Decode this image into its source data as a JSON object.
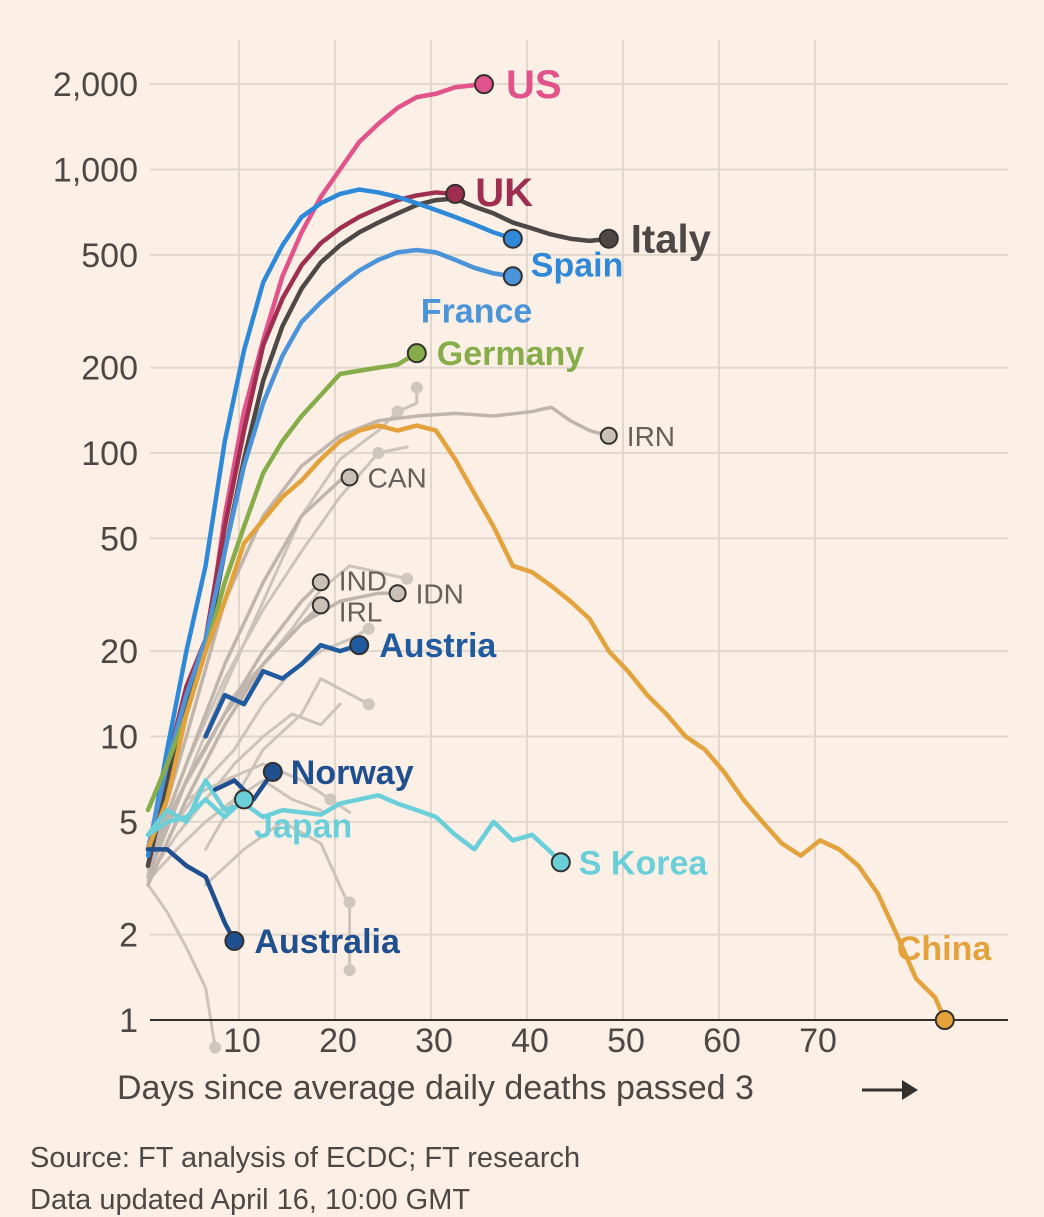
{
  "chart_data": {
    "type": "line",
    "yscale": "log",
    "ylim": [
      1,
      2500
    ],
    "xlim": [
      0,
      87
    ],
    "yticks": [
      1,
      2,
      5,
      10,
      20,
      50,
      100,
      200,
      500,
      1000,
      2000
    ],
    "ytick_labels": [
      "1",
      "2",
      "5",
      "10",
      "20",
      "50",
      "100",
      "200",
      "500",
      "1,000",
      "2,000"
    ],
    "xticks": [
      10,
      20,
      30,
      40,
      50,
      60,
      70
    ],
    "xtick_labels": [
      "10",
      "20",
      "30",
      "40",
      "50",
      "60",
      "70"
    ],
    "xlabel": "Days since average daily deaths passed 3",
    "grid": true,
    "series": [
      {
        "name": "US",
        "label": "US",
        "color": "#e1538a",
        "highlight": true,
        "x": [
          0,
          2,
          4,
          6,
          8,
          10,
          12,
          14,
          16,
          18,
          20,
          22,
          24,
          26,
          28,
          30,
          32,
          35
        ],
        "y": [
          3.5,
          7,
          14,
          20,
          60,
          140,
          250,
          420,
          600,
          800,
          1000,
          1250,
          1450,
          1650,
          1800,
          1850,
          1950,
          2000
        ]
      },
      {
        "name": "UK",
        "label": "UK",
        "color": "#9e2f50",
        "highlight": true,
        "x": [
          0,
          2,
          4,
          6,
          8,
          10,
          12,
          14,
          16,
          18,
          20,
          22,
          24,
          26,
          28,
          30,
          32
        ],
        "y": [
          4,
          8,
          15,
          22,
          55,
          120,
          240,
          350,
          460,
          550,
          620,
          680,
          730,
          780,
          810,
          830,
          820
        ]
      },
      {
        "name": "Italy",
        "label": "Italy",
        "color": "#4d4845",
        "highlight": true,
        "x": [
          0,
          2,
          4,
          6,
          8,
          10,
          12,
          14,
          16,
          18,
          20,
          22,
          24,
          26,
          28,
          30,
          32,
          34,
          36,
          38,
          40,
          42,
          44,
          46,
          48
        ],
        "y": [
          3.5,
          7,
          13,
          20,
          45,
          95,
          180,
          280,
          380,
          470,
          540,
          600,
          650,
          700,
          750,
          780,
          790,
          740,
          700,
          650,
          620,
          590,
          570,
          560,
          570
        ]
      },
      {
        "name": "Spain",
        "label": "Spain",
        "color": "#2e8ad9",
        "highlight": true,
        "x": [
          0,
          2,
          4,
          6,
          8,
          10,
          12,
          14,
          16,
          18,
          20,
          22,
          24,
          26,
          28,
          30,
          32,
          34,
          36,
          38
        ],
        "y": [
          3.8,
          9,
          20,
          40,
          110,
          230,
          400,
          540,
          680,
          760,
          820,
          850,
          830,
          800,
          760,
          720,
          680,
          640,
          600,
          570
        ]
      },
      {
        "name": "France",
        "label": "France",
        "color": "#4c94d9",
        "highlight": true,
        "x": [
          0,
          2,
          4,
          6,
          8,
          10,
          12,
          14,
          16,
          18,
          20,
          22,
          24,
          26,
          28,
          30,
          32,
          34,
          36,
          38
        ],
        "y": [
          4,
          8,
          14,
          22,
          45,
          90,
          150,
          220,
          290,
          340,
          390,
          440,
          480,
          510,
          520,
          510,
          480,
          450,
          430,
          420
        ]
      },
      {
        "name": "Germany",
        "label": "Germany",
        "color": "#87ad4a",
        "highlight": true,
        "x": [
          0,
          2,
          4,
          6,
          8,
          10,
          12,
          14,
          16,
          18,
          20,
          22,
          24,
          26,
          28
        ],
        "y": [
          5.5,
          8,
          12,
          20,
          35,
          55,
          85,
          110,
          135,
          160,
          190,
          195,
          200,
          205,
          225
        ]
      },
      {
        "name": "China",
        "label": "China",
        "color": "#e3a23b",
        "highlight": true,
        "x": [
          0,
          2,
          4,
          6,
          8,
          10,
          12,
          14,
          16,
          18,
          20,
          22,
          24,
          26,
          28,
          30,
          32,
          34,
          36,
          38,
          40,
          42,
          44,
          46,
          48,
          50,
          52,
          54,
          56,
          58,
          60,
          62,
          64,
          66,
          68,
          70,
          72,
          74,
          76,
          78,
          80,
          82,
          83
        ],
        "y": [
          4,
          6,
          12,
          20,
          30,
          48,
          58,
          70,
          80,
          95,
          110,
          120,
          125,
          120,
          125,
          120,
          95,
          72,
          55,
          40,
          38,
          34,
          30,
          26,
          20,
          17,
          14,
          12,
          10,
          9,
          7.5,
          6,
          5,
          4.2,
          3.8,
          4.3,
          4,
          3.5,
          2.8,
          2,
          1.4,
          1.2,
          1
        ]
      },
      {
        "name": "S Korea",
        "label": "S Korea",
        "color": "#6bcfd9",
        "highlight": true,
        "x": [
          0,
          2,
          4,
          6,
          8,
          10,
          12,
          14,
          16,
          18,
          20,
          22,
          24,
          26,
          28,
          30,
          32,
          34,
          36,
          38,
          40,
          42,
          43
        ],
        "y": [
          4.5,
          5.5,
          5,
          7,
          5.5,
          5.8,
          5.2,
          5.5,
          5.4,
          5.3,
          5.8,
          6,
          6.2,
          5.8,
          5.5,
          5.2,
          4.5,
          4,
          5,
          4.3,
          4.5,
          3.9,
          3.6
        ]
      },
      {
        "name": "Austria",
        "label": "Austria",
        "color": "#205a9f",
        "highlight": true,
        "x": [
          6,
          8,
          10,
          12,
          14,
          16,
          18,
          20,
          22
        ],
        "y": [
          10,
          14,
          13,
          17,
          16,
          18,
          21,
          20,
          21
        ]
      },
      {
        "name": "Norway",
        "label": "Norway",
        "color": "#1f4f8f",
        "highlight": true,
        "x": [
          7,
          9,
          11,
          13
        ],
        "y": [
          6.5,
          7,
          6,
          7.5
        ]
      },
      {
        "name": "Japan",
        "label": "Japan",
        "color": "#6bcfd9",
        "highlight": true,
        "x": [
          0,
          2,
          4,
          6,
          8,
          10
        ],
        "y": [
          4.5,
          5,
          5.2,
          6,
          5.2,
          6
        ]
      },
      {
        "name": "Australia",
        "label": "Australia",
        "color": "#1f4f8f",
        "highlight": true,
        "x": [
          0,
          2,
          4,
          6,
          8,
          9
        ],
        "y": [
          4,
          4,
          3.5,
          3.2,
          2.2,
          1.9
        ]
      },
      {
        "name": "IRN",
        "label": "IRN",
        "color": "#bfb5ad",
        "highlight": false,
        "x": [
          0,
          4,
          8,
          12,
          16,
          20,
          24,
          28,
          32,
          36,
          40,
          42,
          44,
          46,
          48
        ],
        "y": [
          3.5,
          10,
          30,
          60,
          90,
          115,
          130,
          135,
          138,
          135,
          140,
          145,
          130,
          120,
          115
        ]
      },
      {
        "name": "CAN",
        "label": "CAN",
        "color": "#bfb5ad",
        "highlight": false,
        "x": [
          0,
          4,
          8,
          12,
          16,
          20,
          21
        ],
        "y": [
          3.5,
          8,
          18,
          35,
          60,
          80,
          82
        ]
      },
      {
        "name": "IND",
        "label": "IND",
        "color": "#bfb5ad",
        "highlight": false,
        "x": [
          0,
          4,
          8,
          12,
          16,
          18
        ],
        "y": [
          3.2,
          7,
          12,
          20,
          30,
          35
        ]
      },
      {
        "name": "IRL",
        "label": "IRL",
        "color": "#bfb5ad",
        "highlight": false,
        "x": [
          0,
          4,
          8,
          12,
          16,
          18
        ],
        "y": [
          3,
          6,
          11,
          18,
          25,
          29
        ]
      },
      {
        "name": "IDN",
        "label": "IDN",
        "color": "#bfb5ad",
        "highlight": false,
        "x": [
          0,
          4,
          8,
          12,
          16,
          20,
          24,
          26
        ],
        "y": [
          3.5,
          7,
          12,
          18,
          25,
          30,
          32,
          32
        ]
      }
    ]
  },
  "footer": {
    "source": "Source: FT analysis of ECDC; FT research",
    "updated": "Data updated April 16, 10:00 GMT"
  }
}
